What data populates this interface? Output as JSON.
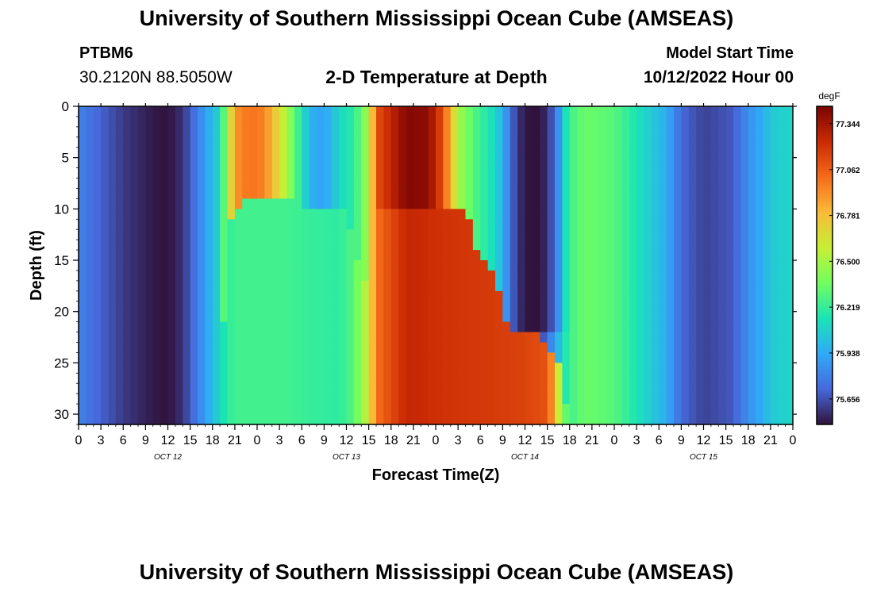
{
  "header": {
    "title": "University of Southern Mississippi Ocean Cube (AMSEAS)",
    "station_id": "PTBM6",
    "coordinates": "30.2120N  88.5050W",
    "subtitle": "2-D Temperature at Depth",
    "model_start_label": "Model Start Time",
    "model_start_value": "10/12/2022 Hour 00"
  },
  "footer": {
    "title": "University of Southern Mississippi Ocean Cube (AMSEAS)"
  },
  "colors": {
    "background": "#ffffff",
    "axis": "#000000",
    "colormap": [
      "#30123b",
      "#4669dc",
      "#31a9f8",
      "#1ae4b6",
      "#71fe5f",
      "#c8ef34",
      "#faba39",
      "#f66b19",
      "#ca2a04",
      "#7a0403"
    ]
  },
  "chart_data": {
    "type": "heatmap",
    "title": "2-D Temperature at Depth",
    "xlabel": "Forecast Time(Z)",
    "ylabel": "Depth (ft)",
    "x_tick_labels": [
      "0",
      "3",
      "6",
      "9",
      "12",
      "15",
      "18",
      "21",
      "0",
      "3",
      "6",
      "9",
      "12",
      "15",
      "18",
      "21",
      "0",
      "3",
      "6",
      "9",
      "12",
      "15",
      "18",
      "21",
      "0",
      "3",
      "6",
      "9",
      "12",
      "15",
      "18",
      "21",
      "0"
    ],
    "x_range_hours": [
      0,
      96
    ],
    "day_labels": [
      {
        "label": "OCT 12",
        "hour": 12
      },
      {
        "label": "OCT 13",
        "hour": 36
      },
      {
        "label": "OCT 14",
        "hour": 60
      },
      {
        "label": "OCT 15",
        "hour": 84
      }
    ],
    "y_range_ft": [
      0,
      31
    ],
    "y_ticks": [
      0,
      5,
      10,
      15,
      20,
      25,
      30
    ],
    "y_tick_labels": [
      "0",
      "5",
      "10",
      "15",
      "20",
      "25",
      "30"
    ],
    "colorbar": {
      "unit": "degF",
      "min": 75.5,
      "max": 77.45,
      "tick_values": [
        77.344,
        77.062,
        76.781,
        76.5,
        76.219,
        75.938,
        75.656
      ],
      "tick_labels": [
        "77.344",
        "77.062",
        "76.781",
        "76.500",
        "76.219",
        "75.938",
        "75.656"
      ]
    },
    "surface_time_series": {
      "hours": [
        0,
        6,
        10,
        12,
        14,
        17,
        19,
        20,
        21,
        23,
        25,
        28,
        31,
        33,
        35,
        37,
        39,
        40,
        44,
        47,
        49,
        51,
        53,
        56,
        58,
        60,
        61,
        62,
        64,
        65,
        66,
        68,
        72,
        76,
        79,
        81,
        84,
        88,
        90,
        92,
        93,
        96
      ],
      "values": [
        75.8,
        75.6,
        75.52,
        75.5,
        75.58,
        75.9,
        76.1,
        76.5,
        76.9,
        77.0,
        76.95,
        76.5,
        75.98,
        75.9,
        76.1,
        76.2,
        76.5,
        77.1,
        77.42,
        77.4,
        77.1,
        76.5,
        76.3,
        76.1,
        75.8,
        75.55,
        75.52,
        75.6,
        75.9,
        76.1,
        76.25,
        76.35,
        76.3,
        76.1,
        75.95,
        75.72,
        75.62,
        75.68,
        75.85,
        75.95,
        76.05,
        76.1
      ]
    },
    "bottom_time_series": {
      "hours": [
        0,
        6,
        10,
        12,
        14,
        17,
        19,
        20,
        21,
        25,
        28,
        31,
        35,
        37,
        39,
        40,
        44,
        50,
        55,
        60,
        63,
        64,
        65,
        66,
        68,
        72,
        76,
        79,
        81,
        84,
        88,
        90,
        92,
        93,
        96
      ],
      "values": [
        75.8,
        75.6,
        75.52,
        75.52,
        75.58,
        75.9,
        76.1,
        76.2,
        76.25,
        76.25,
        76.25,
        76.22,
        76.2,
        76.3,
        76.6,
        77.0,
        77.25,
        77.2,
        77.18,
        77.15,
        77.1,
        76.8,
        76.4,
        76.25,
        76.35,
        76.3,
        76.1,
        75.95,
        75.72,
        75.62,
        75.68,
        75.85,
        75.95,
        76.05,
        76.1
      ]
    },
    "mixed_layer_depth_ft": {
      "hours": [
        0,
        19,
        20,
        21,
        22,
        29,
        30,
        36,
        37,
        38,
        39,
        40,
        52,
        53,
        54,
        56,
        57,
        58,
        62,
        63,
        64,
        65,
        66,
        96
      ],
      "values": [
        31,
        31,
        11,
        10,
        9,
        9,
        10,
        10,
        14,
        16,
        17,
        10,
        10,
        12,
        15,
        16,
        20,
        22,
        22,
        23,
        24,
        26,
        31,
        31
      ]
    },
    "cold_intrusion": {
      "hours": [
        56,
        57,
        58,
        59,
        60,
        62,
        63,
        64,
        65,
        66
      ],
      "bottom_ft": [
        16,
        20,
        22,
        22,
        22,
        22,
        22,
        22,
        22,
        22
      ],
      "min_value": 75.5
    }
  }
}
